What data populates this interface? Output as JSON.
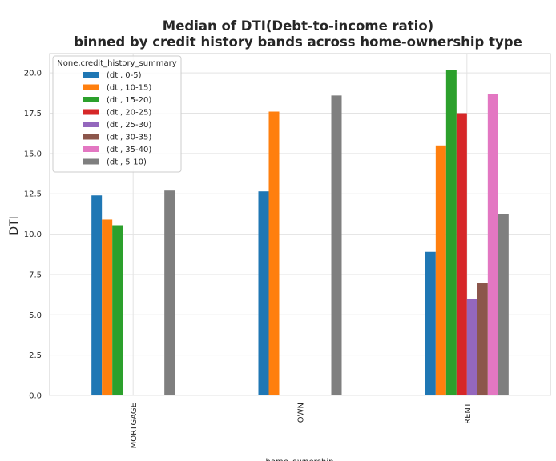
{
  "chart_data": {
    "type": "bar",
    "title_line1": "Median of DTI(Debt-to-income ratio)",
    "title_line2": "binned by credit history bands across home-ownership type",
    "xlabel": "home_ownership",
    "ylabel": "DTI",
    "ylim": [
      0,
      21.2
    ],
    "yticks": [
      "0.0",
      "2.5",
      "5.0",
      "7.5",
      "10.0",
      "12.5",
      "15.0",
      "17.5",
      "20.0"
    ],
    "categories": [
      "MORTGAGE",
      "OWN",
      "RENT"
    ],
    "grid": true,
    "legend_position": "top-left",
    "legend_title": "None,credit_history_summary",
    "series": [
      {
        "name": "(dti, 0-5)",
        "color": "#1f77b4",
        "values": [
          12.4,
          12.65,
          8.9
        ]
      },
      {
        "name": "(dti, 10-15)",
        "color": "#ff7f0e",
        "values": [
          10.9,
          17.6,
          15.5
        ]
      },
      {
        "name": "(dti, 15-20)",
        "color": "#2ca02c",
        "values": [
          10.55,
          null,
          20.2
        ]
      },
      {
        "name": "(dti, 20-25)",
        "color": "#d62728",
        "values": [
          null,
          null,
          17.5
        ]
      },
      {
        "name": "(dti, 25-30)",
        "color": "#9467bd",
        "values": [
          null,
          null,
          6.0
        ]
      },
      {
        "name": "(dti, 30-35)",
        "color": "#8c564b",
        "values": [
          null,
          null,
          6.95
        ]
      },
      {
        "name": "(dti, 35-40)",
        "color": "#e377c2",
        "values": [
          null,
          null,
          18.7
        ]
      },
      {
        "name": "(dti, 5-10)",
        "color": "#7f7f7f",
        "values": [
          12.7,
          18.6,
          11.25
        ]
      }
    ]
  }
}
